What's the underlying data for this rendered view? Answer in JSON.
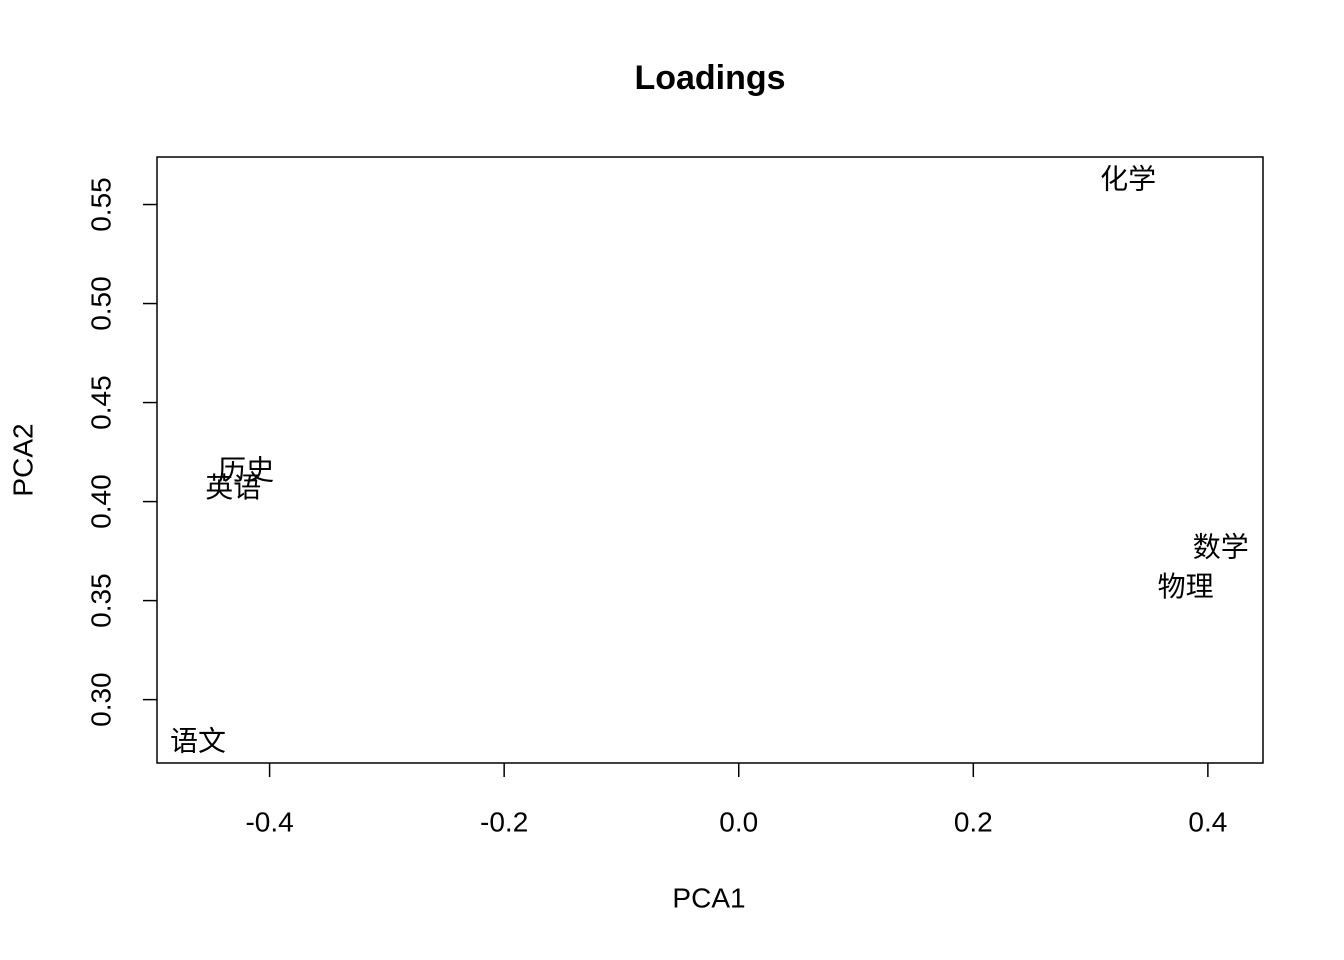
{
  "chart_data": {
    "type": "scatter",
    "title": "Loadings",
    "x_label": "PCA1",
    "y_label": "PCA2",
    "x": [
      0.332,
      0.411,
      0.381,
      -0.42,
      -0.431,
      -0.461
    ],
    "values": [
      0.562,
      0.376,
      0.356,
      0.415,
      0.406,
      0.278
    ],
    "labels": [
      "化学",
      "数学",
      "物理",
      "历史",
      "英语",
      "语文"
    ],
    "color": "#000000",
    "xlim": [
      -0.496,
      0.447
    ],
    "ylim": [
      0.268,
      0.574
    ],
    "xticks": [
      -0.4,
      -0.2,
      {
        "value": 0,
        "label": "0.0"
      },
      0.2,
      0.4
    ],
    "yticks": [
      {
        "value": 0.3,
        "label": "0.30"
      },
      0.35,
      {
        "value": 0.4,
        "label": "0.40"
      },
      0.45,
      {
        "value": 0.5,
        "label": "0.50"
      },
      0.55
    ]
  }
}
